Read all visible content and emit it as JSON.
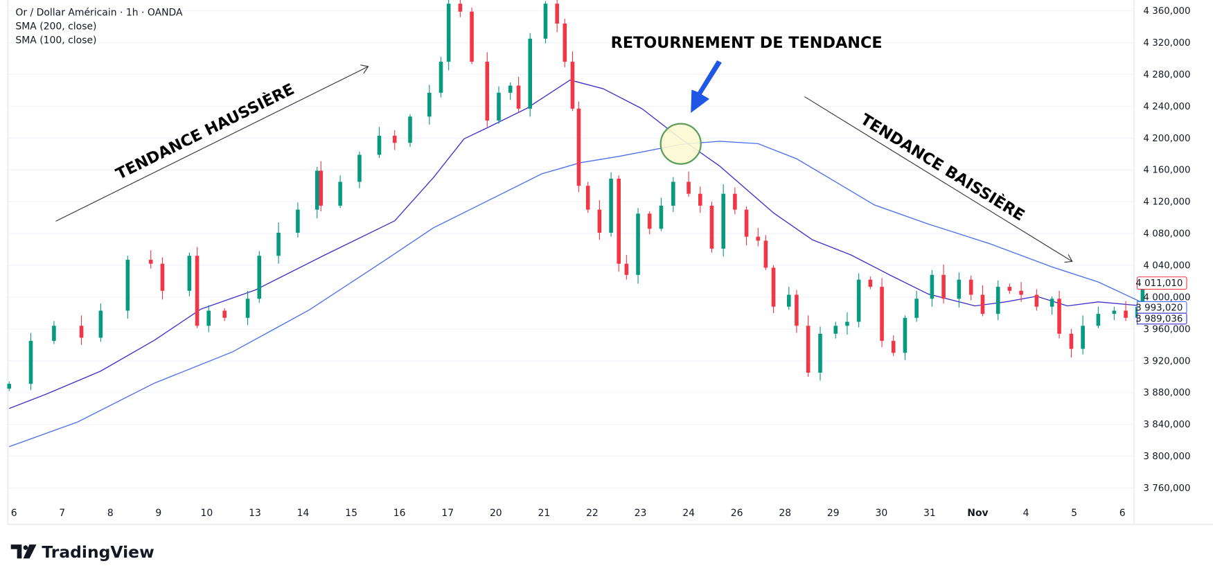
{
  "legend": {
    "symbol_line": "Or / Dollar Américain · 1h · OANDA",
    "sma200_label": "SMA (200, close)",
    "sma100_label": "SMA (100, close)"
  },
  "annotations": {
    "uptrend": "TENDANCE HAUSSIÈRE",
    "reversal": "RETOURNEMENT DE TENDANCE",
    "downtrend": "TENDANCE BAISSIÈRE"
  },
  "price_tags": {
    "last_price": "4 011,010",
    "sma200_value": "3 993,020",
    "sma100_value": "3 989,036"
  },
  "branding": {
    "logo_text": "TradingView"
  },
  "colors": {
    "up": "#089981",
    "down": "#f23645",
    "sma200": "#4a6ef0",
    "sma100": "#3d2fcf",
    "reversal_arrow": "#1f56e6",
    "circle_fill": "#fbf8d2",
    "circle_stroke": "#5a9e5a",
    "grid": "#f0f3fa"
  },
  "chart_data": {
    "type": "candlestick",
    "title": "",
    "xlabel": "",
    "ylabel": "",
    "ylim": [
      3740,
      4370
    ],
    "grid": "horizontal",
    "x_tick_labels": [
      "6",
      "7",
      "8",
      "9",
      "10",
      "13",
      "14",
      "15",
      "16",
      "17",
      "20",
      "21",
      "22",
      "23",
      "24",
      "26",
      "28",
      "29",
      "30",
      "31",
      "Nov",
      "4",
      "5",
      "6"
    ],
    "y_ticks": [
      4360,
      4320,
      4280,
      4240,
      4200,
      4160,
      4120,
      4080,
      4040,
      4000,
      3960,
      3920,
      3880,
      3840,
      3800,
      3760
    ],
    "y_tick_labels": [
      "4 360,000",
      "4 320,000",
      "4 280,000",
      "4 240,000",
      "4 200,000",
      "4 160,000",
      "4 120,000",
      "4 080,000",
      "4 040,000",
      "4 000,000",
      "3 960,000",
      "3 920,000",
      "3 880,000",
      "3 840,000",
      "3 800,000",
      "3 760,000"
    ],
    "candles": {
      "t": [
        -0.1,
        0.35,
        0.83,
        1.4,
        1.8,
        2.36,
        2.84,
        3.08,
        3.64,
        3.8,
        4.04,
        4.37,
        4.85,
        5.09,
        5.49,
        5.89,
        6.29,
        6.37,
        6.77,
        7.17,
        7.58,
        7.9,
        8.22,
        8.62,
        8.86,
        9.02,
        9.26,
        9.5,
        9.82,
        10.06,
        10.3,
        10.47,
        10.71,
        11.03,
        11.27,
        11.43,
        11.59,
        11.72,
        11.91,
        12.15,
        12.39,
        12.55,
        12.71,
        12.95,
        13.19,
        13.43,
        13.68,
        14.0,
        14.24,
        14.48,
        14.72,
        14.96,
        15.2,
        15.44,
        15.6,
        15.76,
        16.08,
        16.24,
        16.48,
        16.73,
        17.05,
        17.29,
        17.53,
        17.77,
        18.01,
        18.25,
        18.49,
        18.73,
        19.05,
        19.29,
        19.61,
        19.86,
        20.1,
        20.42,
        20.66,
        20.9,
        21.22,
        21.54,
        21.69,
        21.94,
        22.18,
        22.5,
        22.83,
        23.07,
        23.31,
        23.42
      ],
      "close": [
        3891,
        3945,
        3964,
        3949,
        3983,
        4047,
        4042,
        4008,
        4052,
        3964,
        3983,
        3974,
        3998,
        4052,
        4081,
        4110,
        4159,
        4115,
        4145,
        4179,
        4203,
        4194,
        4227,
        4257,
        4296,
        4369,
        4359,
        4296,
        4222,
        4257,
        4266,
        4237,
        4325,
        4369,
        4344,
        4296,
        4237,
        4140,
        4110,
        4081,
        4149,
        4042,
        4028,
        4105,
        4086,
        4115,
        4145,
        4130,
        4115,
        4061,
        4130,
        4110,
        4076,
        4071,
        4037,
        3988,
        4003,
        3964,
        3905,
        3954,
        3964,
        3969,
        4022,
        4013,
        3945,
        3930,
        3974,
        3998,
        4028,
        3998,
        4022,
        4003,
        3979,
        4013,
        4008,
        4003,
        3988,
        3998,
        3954,
        3935,
        3964,
        3979,
        3983,
        3974,
        3988,
        4011
      ]
    },
    "series": [
      {
        "name": "SMA (200, close)",
        "t": [
          -0.1,
          1.32,
          2.92,
          4.53,
          6.13,
          7.74,
          8.7,
          9.66,
          10.95,
          11.75,
          12.55,
          13.84,
          14.64,
          15.44,
          16.24,
          17.05,
          17.85,
          18.97,
          20.26,
          21.54,
          22.5,
          23.42
        ],
        "values": [
          3812,
          3843,
          3892,
          3931,
          3984,
          4048,
          4087,
          4116,
          4155,
          4169,
          4177,
          4192,
          4196,
          4193,
          4174,
          4145,
          4116,
          4092,
          4067,
          4038,
          4019,
          3993
        ]
      },
      {
        "name": "SMA (100, close)",
        "t": [
          -0.1,
          0.67,
          1.8,
          2.92,
          3.88,
          5.01,
          6.45,
          7.9,
          8.7,
          9.34,
          9.82,
          10.63,
          11.54,
          12.23,
          13.03,
          13.84,
          14.64,
          15.76,
          16.57,
          17.37,
          18.17,
          18.97,
          19.94,
          20.58,
          21.22,
          21.86,
          22.5,
          23.42
        ],
        "values": [
          3860,
          3878,
          3907,
          3946,
          3985,
          4009,
          4053,
          4096,
          4150,
          4199,
          4213,
          4237,
          4273,
          4262,
          4237,
          4199,
          4165,
          4106,
          4072,
          4053,
          4028,
          4004,
          3989,
          3994,
          4001,
          3989,
          3994,
          3989
        ]
      }
    ]
  }
}
